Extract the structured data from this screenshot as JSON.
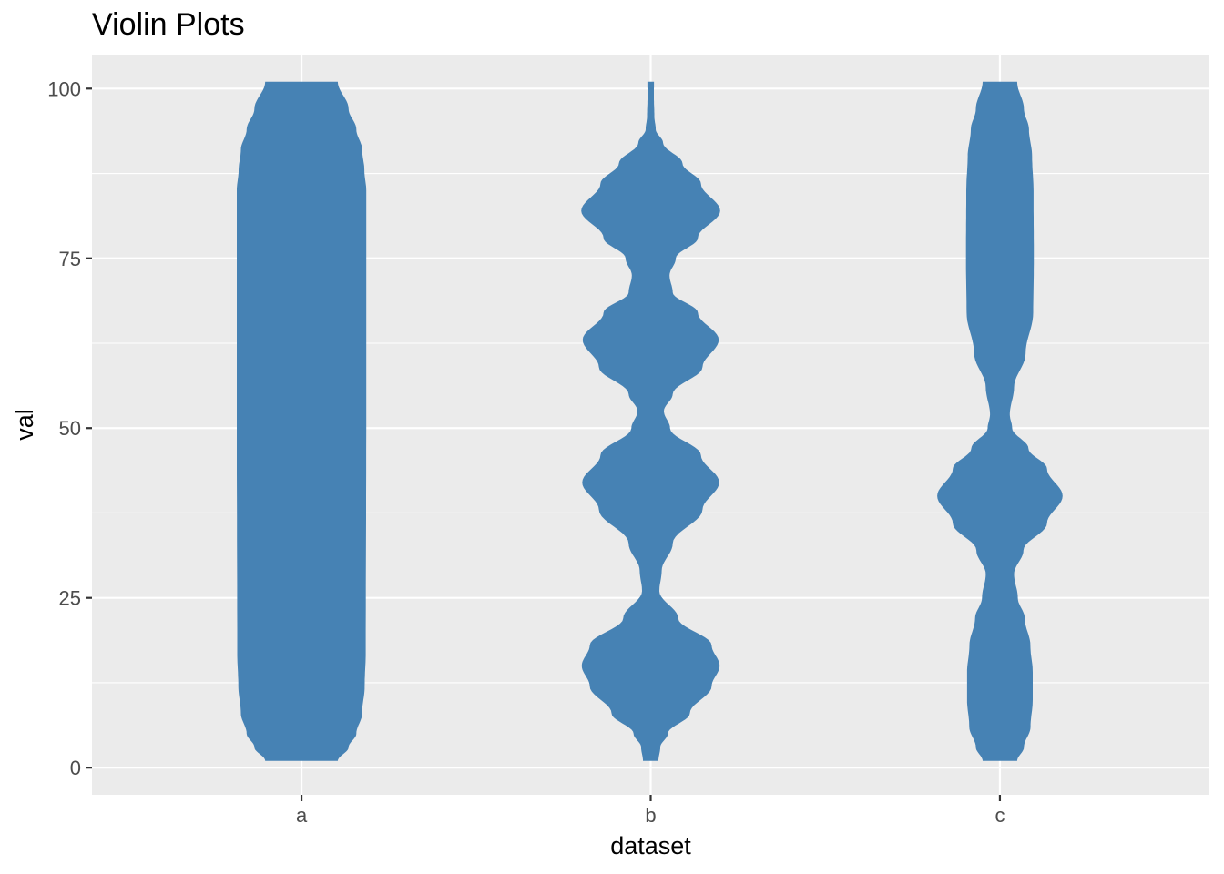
{
  "chart_data": {
    "type": "violin",
    "title": "Violin Plots",
    "xlabel": "dataset",
    "ylabel": "val",
    "categories": [
      "a",
      "b",
      "c"
    ],
    "ylim": [
      -4,
      105
    ],
    "yticks": [
      0,
      25,
      50,
      75,
      100
    ],
    "ytick_labels": [
      "0",
      "25",
      "50",
      "75",
      "100"
    ],
    "grid": true,
    "fill_color": "#4682b4",
    "panel_background": "#ebebeb",
    "max_halfwidth_fraction_of_category_spacing": 0.45,
    "series": [
      {
        "category": "a",
        "range": [
          1,
          101
        ],
        "profile": [
          [
            1,
            0.231
          ],
          [
            3,
            0.3
          ],
          [
            5,
            0.349
          ],
          [
            8,
            0.386
          ],
          [
            12,
            0.402
          ],
          [
            17,
            0.409
          ],
          [
            50,
            0.412
          ],
          [
            85,
            0.412
          ],
          [
            88,
            0.4
          ],
          [
            91,
            0.386
          ],
          [
            94,
            0.349
          ],
          [
            97,
            0.3
          ],
          [
            101,
            0.231
          ]
        ]
      },
      {
        "category": "b",
        "range": [
          1,
          101
        ],
        "profile": [
          [
            1,
            0.049
          ],
          [
            3,
            0.061
          ],
          [
            5,
            0.109
          ],
          [
            8,
            0.249
          ],
          [
            12,
            0.388
          ],
          [
            15,
            0.439
          ],
          [
            18,
            0.388
          ],
          [
            22,
            0.175
          ],
          [
            26,
            0.055
          ],
          [
            29,
            0.07
          ],
          [
            33,
            0.14
          ],
          [
            38,
            0.33
          ],
          [
            42,
            0.436
          ],
          [
            46,
            0.32
          ],
          [
            50,
            0.123
          ],
          [
            52.5,
            0.084
          ],
          [
            55,
            0.14
          ],
          [
            59,
            0.33
          ],
          [
            63,
            0.433
          ],
          [
            67,
            0.3
          ],
          [
            70,
            0.14
          ],
          [
            72.5,
            0.12
          ],
          [
            75,
            0.16
          ],
          [
            78,
            0.3
          ],
          [
            82,
            0.442
          ],
          [
            86,
            0.32
          ],
          [
            89,
            0.202
          ],
          [
            92,
            0.079
          ],
          [
            94,
            0.032
          ],
          [
            96,
            0.023
          ],
          [
            99,
            0.02
          ],
          [
            101,
            0.021
          ]
        ]
      },
      {
        "category": "c",
        "range": [
          1,
          101
        ],
        "profile": [
          [
            1,
            0.11
          ],
          [
            3,
            0.153
          ],
          [
            6,
            0.195
          ],
          [
            10,
            0.209
          ],
          [
            14,
            0.209
          ],
          [
            18,
            0.194
          ],
          [
            22,
            0.158
          ],
          [
            25,
            0.114
          ],
          [
            28.5,
            0.09
          ],
          [
            32,
            0.15
          ],
          [
            36,
            0.3
          ],
          [
            40,
            0.399
          ],
          [
            44,
            0.3
          ],
          [
            47,
            0.182
          ],
          [
            50,
            0.078
          ],
          [
            52,
            0.063
          ],
          [
            56,
            0.09
          ],
          [
            61,
            0.164
          ],
          [
            67,
            0.212
          ],
          [
            75,
            0.216
          ],
          [
            85,
            0.214
          ],
          [
            90,
            0.205
          ],
          [
            94,
            0.185
          ],
          [
            97,
            0.153
          ],
          [
            101,
            0.11
          ]
        ]
      }
    ]
  }
}
